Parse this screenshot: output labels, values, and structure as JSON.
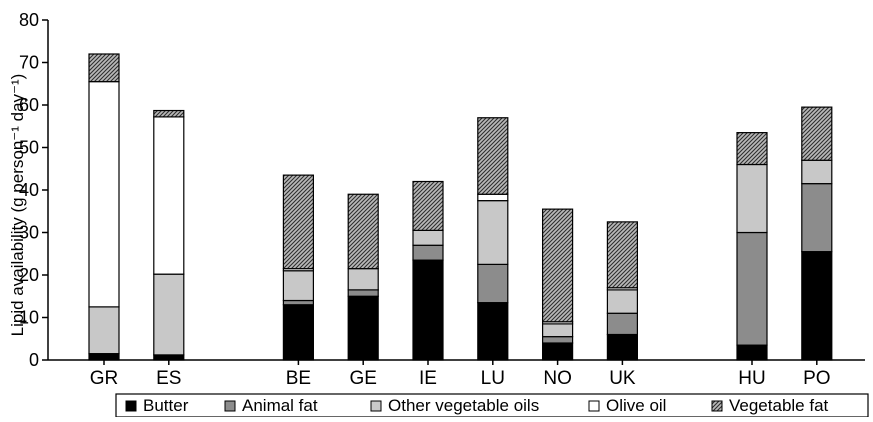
{
  "chart_data": {
    "type": "bar",
    "stacked": true,
    "title": "",
    "xlabel": "",
    "ylabel": "Lipid availability (g person⁻¹ day⁻¹)",
    "ylim": [
      0,
      80
    ],
    "yticks": [
      0,
      10,
      20,
      30,
      40,
      50,
      60,
      70,
      80
    ],
    "grid": false,
    "legend_position": "bottom",
    "categories": [
      "GR",
      "ES",
      "BE",
      "GE",
      "IE",
      "LU",
      "NO",
      "UK",
      "HU",
      "PO"
    ],
    "category_slots": [
      0,
      1,
      3,
      4,
      5,
      6,
      7,
      8,
      10,
      11
    ],
    "series": [
      {
        "name": "Butter",
        "color": "#000000",
        "pattern": "solid",
        "values": [
          1.5,
          1.2,
          13,
          15,
          23.5,
          13.5,
          4,
          6,
          3.5,
          25.5
        ]
      },
      {
        "name": "Animal fat",
        "color": "#8c8c8c",
        "pattern": "solid",
        "values": [
          0,
          0,
          1,
          1.5,
          3.5,
          9,
          1.5,
          5,
          26.5,
          16
        ]
      },
      {
        "name": "Other vegetable oils",
        "color": "#c8c8c8",
        "pattern": "solid",
        "values": [
          11,
          19,
          7,
          5,
          3.5,
          15,
          3,
          5.5,
          16,
          5.5
        ]
      },
      {
        "name": "Olive oil",
        "color": "#ffffff",
        "pattern": "solid",
        "values": [
          53,
          37,
          0.5,
          0,
          0,
          1.5,
          0.5,
          0.5,
          0,
          0
        ]
      },
      {
        "name": "Vegetable fat",
        "color": "#7a7a7a",
        "pattern": "hatched",
        "values": [
          6.5,
          1.5,
          22,
          17.5,
          11.5,
          18,
          26.5,
          15.5,
          7.5,
          12.5
        ]
      }
    ]
  }
}
